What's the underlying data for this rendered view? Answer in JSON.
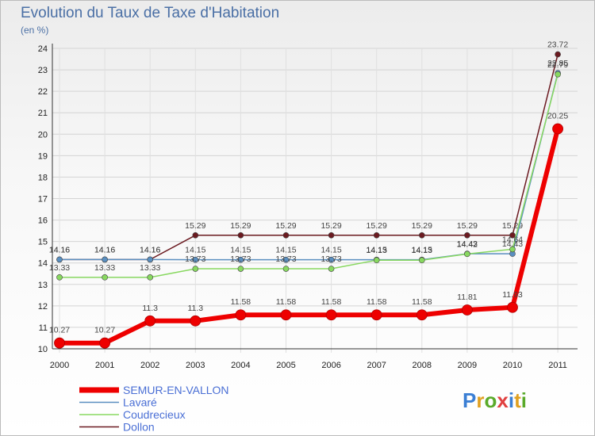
{
  "title": "Evolution du Taux de Taxe d'Habitation",
  "subtitle": "(en %)",
  "logo": {
    "text": "Proxiti",
    "colors": [
      "#3b7fd4",
      "#e0a020",
      "#5aaa2a",
      "#e04040",
      "#3b7fd4",
      "#e0a020",
      "#5aaa2a"
    ]
  },
  "chart_data": {
    "type": "line",
    "title": "Evolution du Taux de Taxe d'Habitation",
    "ylabel": "(en %)",
    "x": [
      "2000",
      "2001",
      "2002",
      "2003",
      "2004",
      "2005",
      "2006",
      "2007",
      "2008",
      "2009",
      "2010",
      "2011"
    ],
    "ylim": [
      10,
      24
    ],
    "yticks": [
      10,
      11,
      12,
      13,
      14,
      15,
      16,
      17,
      18,
      19,
      20,
      21,
      22,
      23,
      24
    ],
    "series": [
      {
        "name": "Dollon",
        "color": "#6b1a20",
        "values": [
          14.16,
          14.16,
          14.16,
          15.29,
          15.29,
          15.29,
          15.29,
          15.29,
          15.29,
          15.29,
          15.29,
          23.72
        ],
        "labels": [
          "14.16",
          "14.16",
          "14.16",
          "15.29",
          "15.29",
          "15.29",
          "15.29",
          "15.29",
          "15.29",
          "15.29",
          "15.29",
          "23.72"
        ]
      },
      {
        "name": "Lavaré",
        "color": "#5a8fc0",
        "values": [
          14.16,
          14.16,
          14.16,
          14.15,
          14.15,
          14.15,
          14.15,
          14.15,
          14.15,
          14.43,
          14.43,
          22.85
        ],
        "labels": [
          "14.16",
          "14.16",
          "14.16",
          "14.15",
          "14.15",
          "14.15",
          "14.15",
          "14.15",
          "14.15",
          "14.43",
          "14.43",
          "22.85"
        ]
      },
      {
        "name": "Coudrecieux",
        "color": "#88d860",
        "values": [
          13.33,
          13.33,
          13.33,
          13.73,
          13.73,
          13.73,
          13.73,
          14.13,
          14.13,
          14.42,
          14.64,
          22.79
        ],
        "labels": [
          "13.33",
          "13.33",
          "13.33",
          "13.73",
          "13.73",
          "13.73",
          "13.73",
          "14.13",
          "14.13",
          "14.42",
          "14.64",
          "22.79"
        ]
      },
      {
        "name": "SEMUR-EN-VALLON",
        "color": "#ee0000",
        "values": [
          10.27,
          10.27,
          11.3,
          11.3,
          11.58,
          11.58,
          11.58,
          11.58,
          11.58,
          11.81,
          11.93,
          20.25
        ],
        "labels": [
          "10.27",
          "10.27",
          "11.3",
          "11.3",
          "11.58",
          "11.58",
          "11.58",
          "11.58",
          "11.58",
          "11.81",
          "11.93",
          "20.25"
        ]
      }
    ],
    "legend": [
      {
        "name": "SEMUR-EN-VALLON",
        "color": "#ee0000"
      },
      {
        "name": "Lavaré",
        "color": "#5a8fc0"
      },
      {
        "name": "Coudrecieux",
        "color": "#88d860"
      },
      {
        "name": "Dollon",
        "color": "#6b1a20"
      }
    ]
  }
}
